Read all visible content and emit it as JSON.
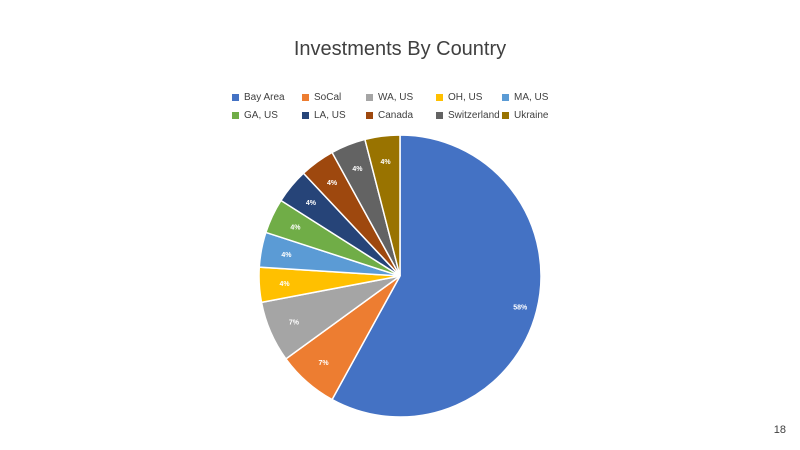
{
  "chart_data": {
    "type": "pie",
    "title": "Investments By Country",
    "categories": [
      "Bay Area",
      "SoCal",
      "WA, US",
      "OH, US",
      "MA, US",
      "GA, US",
      "LA, US",
      "Canada",
      "Switzerland",
      "Ukraine"
    ],
    "values": [
      58,
      7,
      7,
      4,
      4,
      4,
      4,
      4,
      4,
      4
    ],
    "labels": [
      "58%",
      "7%",
      "7%",
      "4%",
      "4%",
      "4%",
      "4%",
      "4%",
      "4%",
      "4%"
    ],
    "colors": [
      "#4472C4",
      "#ED7D31",
      "#A5A5A5",
      "#FFC000",
      "#5B9BD5",
      "#70AD47",
      "#264478",
      "#9E480E",
      "#636363",
      "#997300"
    ],
    "legend_position": "top"
  },
  "page_number": "18"
}
